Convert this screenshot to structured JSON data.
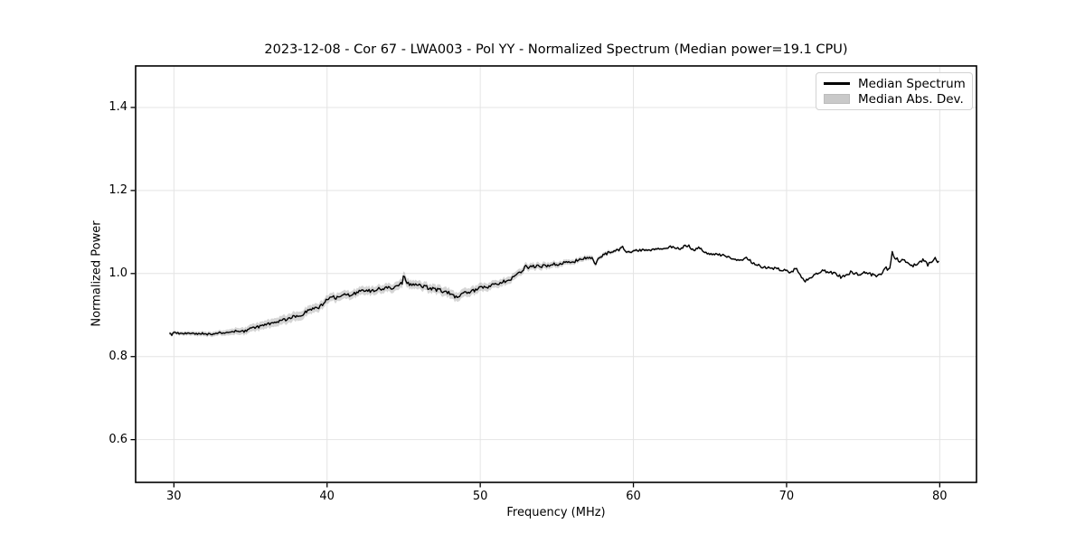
{
  "chart_data": {
    "type": "line",
    "title": "2023-12-08 - Cor 67 - LWA003 - Pol YY - Normalized Spectrum (Median power=19.1 CPU)",
    "xlabel": "Frequency (MHz)",
    "ylabel": "Normalized Power",
    "xlim": [
      27.5,
      82.4
    ],
    "ylim": [
      0.497,
      1.5
    ],
    "xticks": [
      30,
      40,
      50,
      60,
      70,
      80
    ],
    "yticks": [
      0.6,
      0.8,
      1.0,
      1.2,
      1.4
    ],
    "ytick_labels": [
      "0.6",
      "0.8",
      "1.0",
      "1.2",
      "1.4"
    ],
    "grid": true,
    "legend_position": "upper right",
    "line_color": "#000000",
    "band_fill_color": "#9a9a9a",
    "band_fill_opacity": 0.42,
    "grid_color": "#e4e4e4",
    "noise_seed": 9,
    "noise_step_mhz": 0.08,
    "series": [
      {
        "name": "Median Spectrum",
        "type": "line",
        "points": [
          [
            29.7,
            0.857
          ],
          [
            29.85,
            0.852
          ],
          [
            30.0,
            0.858
          ],
          [
            30.3,
            0.856
          ],
          [
            30.6,
            0.855
          ],
          [
            31.0,
            0.856
          ],
          [
            31.4,
            0.854
          ],
          [
            31.8,
            0.856
          ],
          [
            32.2,
            0.854
          ],
          [
            32.6,
            0.855
          ],
          [
            33.0,
            0.857
          ],
          [
            33.5,
            0.857
          ],
          [
            34.0,
            0.861
          ],
          [
            34.4,
            0.859
          ],
          [
            34.8,
            0.864
          ],
          [
            35.2,
            0.869
          ],
          [
            35.6,
            0.872
          ],
          [
            36.0,
            0.877
          ],
          [
            36.5,
            0.882
          ],
          [
            37.0,
            0.886
          ],
          [
            37.5,
            0.892
          ],
          [
            38.0,
            0.899
          ],
          [
            38.4,
            0.901
          ],
          [
            38.6,
            0.908
          ],
          [
            39.0,
            0.913
          ],
          [
            39.5,
            0.918
          ],
          [
            39.8,
            0.93
          ],
          [
            40.0,
            0.937
          ],
          [
            40.4,
            0.944
          ],
          [
            40.8,
            0.94
          ],
          [
            41.2,
            0.95
          ],
          [
            41.6,
            0.947
          ],
          [
            42.0,
            0.957
          ],
          [
            42.4,
            0.96
          ],
          [
            42.8,
            0.958
          ],
          [
            43.2,
            0.962
          ],
          [
            43.6,
            0.963
          ],
          [
            44.0,
            0.965
          ],
          [
            44.4,
            0.967
          ],
          [
            44.7,
            0.972
          ],
          [
            44.9,
            0.978
          ],
          [
            45.0,
            1.0
          ],
          [
            45.1,
            0.98
          ],
          [
            45.4,
            0.975
          ],
          [
            45.8,
            0.973
          ],
          [
            46.2,
            0.969
          ],
          [
            46.6,
            0.966
          ],
          [
            47.0,
            0.962
          ],
          [
            47.4,
            0.96
          ],
          [
            47.8,
            0.955
          ],
          [
            48.2,
            0.948
          ],
          [
            48.5,
            0.942
          ],
          [
            48.8,
            0.95
          ],
          [
            49.2,
            0.956
          ],
          [
            49.6,
            0.96
          ],
          [
            50.0,
            0.964
          ],
          [
            50.4,
            0.968
          ],
          [
            50.8,
            0.972
          ],
          [
            51.2,
            0.976
          ],
          [
            51.6,
            0.981
          ],
          [
            52.0,
            0.988
          ],
          [
            52.4,
            0.998
          ],
          [
            52.8,
            1.008
          ],
          [
            52.95,
            1.022
          ],
          [
            53.1,
            1.01
          ],
          [
            53.4,
            1.017
          ],
          [
            54.0,
            1.018
          ],
          [
            54.4,
            1.02
          ],
          [
            55.0,
            1.022
          ],
          [
            55.4,
            1.025
          ],
          [
            56.0,
            1.028
          ],
          [
            56.3,
            1.031
          ],
          [
            56.8,
            1.036
          ],
          [
            57.3,
            1.039
          ],
          [
            57.5,
            1.022
          ],
          [
            57.8,
            1.04
          ],
          [
            58.3,
            1.049
          ],
          [
            58.6,
            1.052
          ],
          [
            59.0,
            1.056
          ],
          [
            59.3,
            1.065
          ],
          [
            59.6,
            1.05
          ],
          [
            60.0,
            1.054
          ],
          [
            60.5,
            1.056
          ],
          [
            61.0,
            1.054
          ],
          [
            61.5,
            1.059
          ],
          [
            62.0,
            1.061
          ],
          [
            62.5,
            1.064
          ],
          [
            63.0,
            1.059
          ],
          [
            63.3,
            1.065
          ],
          [
            63.6,
            1.068
          ],
          [
            63.9,
            1.056
          ],
          [
            64.3,
            1.063
          ],
          [
            64.7,
            1.049
          ],
          [
            65.1,
            1.048
          ],
          [
            65.5,
            1.046
          ],
          [
            66.0,
            1.042
          ],
          [
            66.4,
            1.036
          ],
          [
            66.8,
            1.033
          ],
          [
            67.1,
            1.03
          ],
          [
            67.4,
            1.038
          ],
          [
            67.7,
            1.028
          ],
          [
            68.0,
            1.022
          ],
          [
            68.4,
            1.016
          ],
          [
            68.8,
            1.014
          ],
          [
            69.2,
            1.013
          ],
          [
            69.6,
            1.01
          ],
          [
            70.0,
            1.005
          ],
          [
            70.3,
            1.0
          ],
          [
            70.6,
            1.014
          ],
          [
            70.9,
            0.996
          ],
          [
            71.2,
            0.982
          ],
          [
            71.5,
            0.99
          ],
          [
            71.8,
            0.996
          ],
          [
            72.1,
            1.002
          ],
          [
            72.4,
            1.007
          ],
          [
            72.7,
            1.003
          ],
          [
            73.0,
            1.002
          ],
          [
            73.3,
            0.997
          ],
          [
            73.6,
            0.99
          ],
          [
            73.9,
            0.997
          ],
          [
            74.2,
            1.003
          ],
          [
            74.5,
            1.0
          ],
          [
            74.8,
            0.998
          ],
          [
            75.1,
            1.004
          ],
          [
            75.4,
            1.001
          ],
          [
            75.7,
            0.995
          ],
          [
            75.9,
            0.991
          ],
          [
            76.2,
            1.0
          ],
          [
            76.5,
            1.012
          ],
          [
            76.7,
            1.008
          ],
          [
            76.9,
            1.05
          ],
          [
            77.1,
            1.036
          ],
          [
            77.4,
            1.031
          ],
          [
            77.7,
            1.029
          ],
          [
            78.0,
            1.026
          ],
          [
            78.3,
            1.019
          ],
          [
            78.6,
            1.024
          ],
          [
            78.9,
            1.034
          ],
          [
            79.2,
            1.021
          ],
          [
            79.5,
            1.03
          ],
          [
            79.7,
            1.04
          ],
          [
            79.85,
            1.024
          ],
          [
            80.0,
            1.034
          ]
        ]
      },
      {
        "name": "Median Abs. Dev.",
        "type": "band_halfwidth",
        "points": [
          [
            29.7,
            0.004
          ],
          [
            31.0,
            0.005
          ],
          [
            33.0,
            0.006
          ],
          [
            34.0,
            0.008
          ],
          [
            35.0,
            0.009
          ],
          [
            36.0,
            0.01
          ],
          [
            38.0,
            0.011
          ],
          [
            40.0,
            0.01
          ],
          [
            42.0,
            0.01
          ],
          [
            44.0,
            0.01
          ],
          [
            45.0,
            0.011
          ],
          [
            46.0,
            0.01
          ],
          [
            48.0,
            0.011
          ],
          [
            50.0,
            0.01
          ],
          [
            51.0,
            0.009
          ],
          [
            52.0,
            0.009
          ],
          [
            53.0,
            0.008
          ],
          [
            54.0,
            0.008
          ],
          [
            55.0,
            0.007
          ],
          [
            56.0,
            0.006
          ],
          [
            57.0,
            0.006
          ],
          [
            58.0,
            0.005
          ],
          [
            59.0,
            0.004
          ],
          [
            60.0,
            0.0035
          ],
          [
            61.0,
            0.003
          ],
          [
            63.0,
            0.0028
          ],
          [
            65.0,
            0.0026
          ],
          [
            70.0,
            0.0025
          ],
          [
            75.0,
            0.0025
          ],
          [
            80.0,
            0.003
          ]
        ]
      }
    ],
    "noise_amplitude": [
      [
        29.7,
        0.002
      ],
      [
        33.0,
        0.0025
      ],
      [
        36.0,
        0.0035
      ],
      [
        40.0,
        0.004
      ],
      [
        45.0,
        0.0045
      ],
      [
        50.0,
        0.0045
      ],
      [
        55.0,
        0.004
      ],
      [
        60.0,
        0.003
      ],
      [
        65.0,
        0.003
      ],
      [
        70.0,
        0.0035
      ],
      [
        75.0,
        0.004
      ],
      [
        80.0,
        0.004
      ]
    ]
  },
  "legend": {
    "entries": [
      {
        "label": "Median Spectrum",
        "swatch": "black-line"
      },
      {
        "label": "Median Abs. Dev.",
        "swatch": "gray-patch"
      }
    ]
  }
}
